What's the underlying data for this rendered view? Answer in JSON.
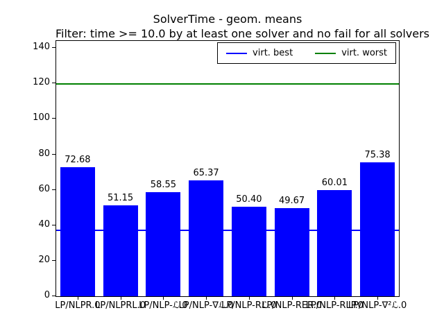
{
  "chart_data": {
    "type": "bar",
    "title": "SolverTime - geom. means",
    "subtitle": "Filter: time >= 10.0 by at least one solver and no fail for all solvers",
    "categories": [
      "LP/NLPR.0",
      "LP/NLPRL.0",
      "LP/NLP-ℒ.0",
      "LP/NLP-∇ℒ.0",
      "LP/NLP-Rℒ.0",
      "LP/NLP-RER.0",
      "LP/NLP-RLP.0",
      "LP/NLP-∇²ℒ.0"
    ],
    "values": [
      72.68,
      51.15,
      58.55,
      65.37,
      50.4,
      49.67,
      60.01,
      75.38
    ],
    "value_labels": [
      "72.68",
      "51.15",
      "58.55",
      "65.37",
      "50.40",
      "49.67",
      "60.01",
      "75.38"
    ],
    "bar_color": "#0000ff",
    "ylim": [
      0,
      144
    ],
    "yticks": [
      0,
      20,
      40,
      60,
      80,
      100,
      120,
      140
    ],
    "ytick_labels": [
      "0",
      "20",
      "40",
      "60",
      "80",
      "100",
      "120",
      "140"
    ],
    "grid": false,
    "hlines": [
      {
        "label": "virt. best",
        "value": 37.1,
        "color": "#0000ff",
        "name": "virt-best"
      },
      {
        "label": "virt. worst",
        "value": 119.7,
        "color": "#008000",
        "name": "virt-worst"
      }
    ],
    "legend_position": "upper right"
  },
  "colors": {
    "background": "#ffffff",
    "axes_edge": "#000000",
    "text": "#000000"
  }
}
